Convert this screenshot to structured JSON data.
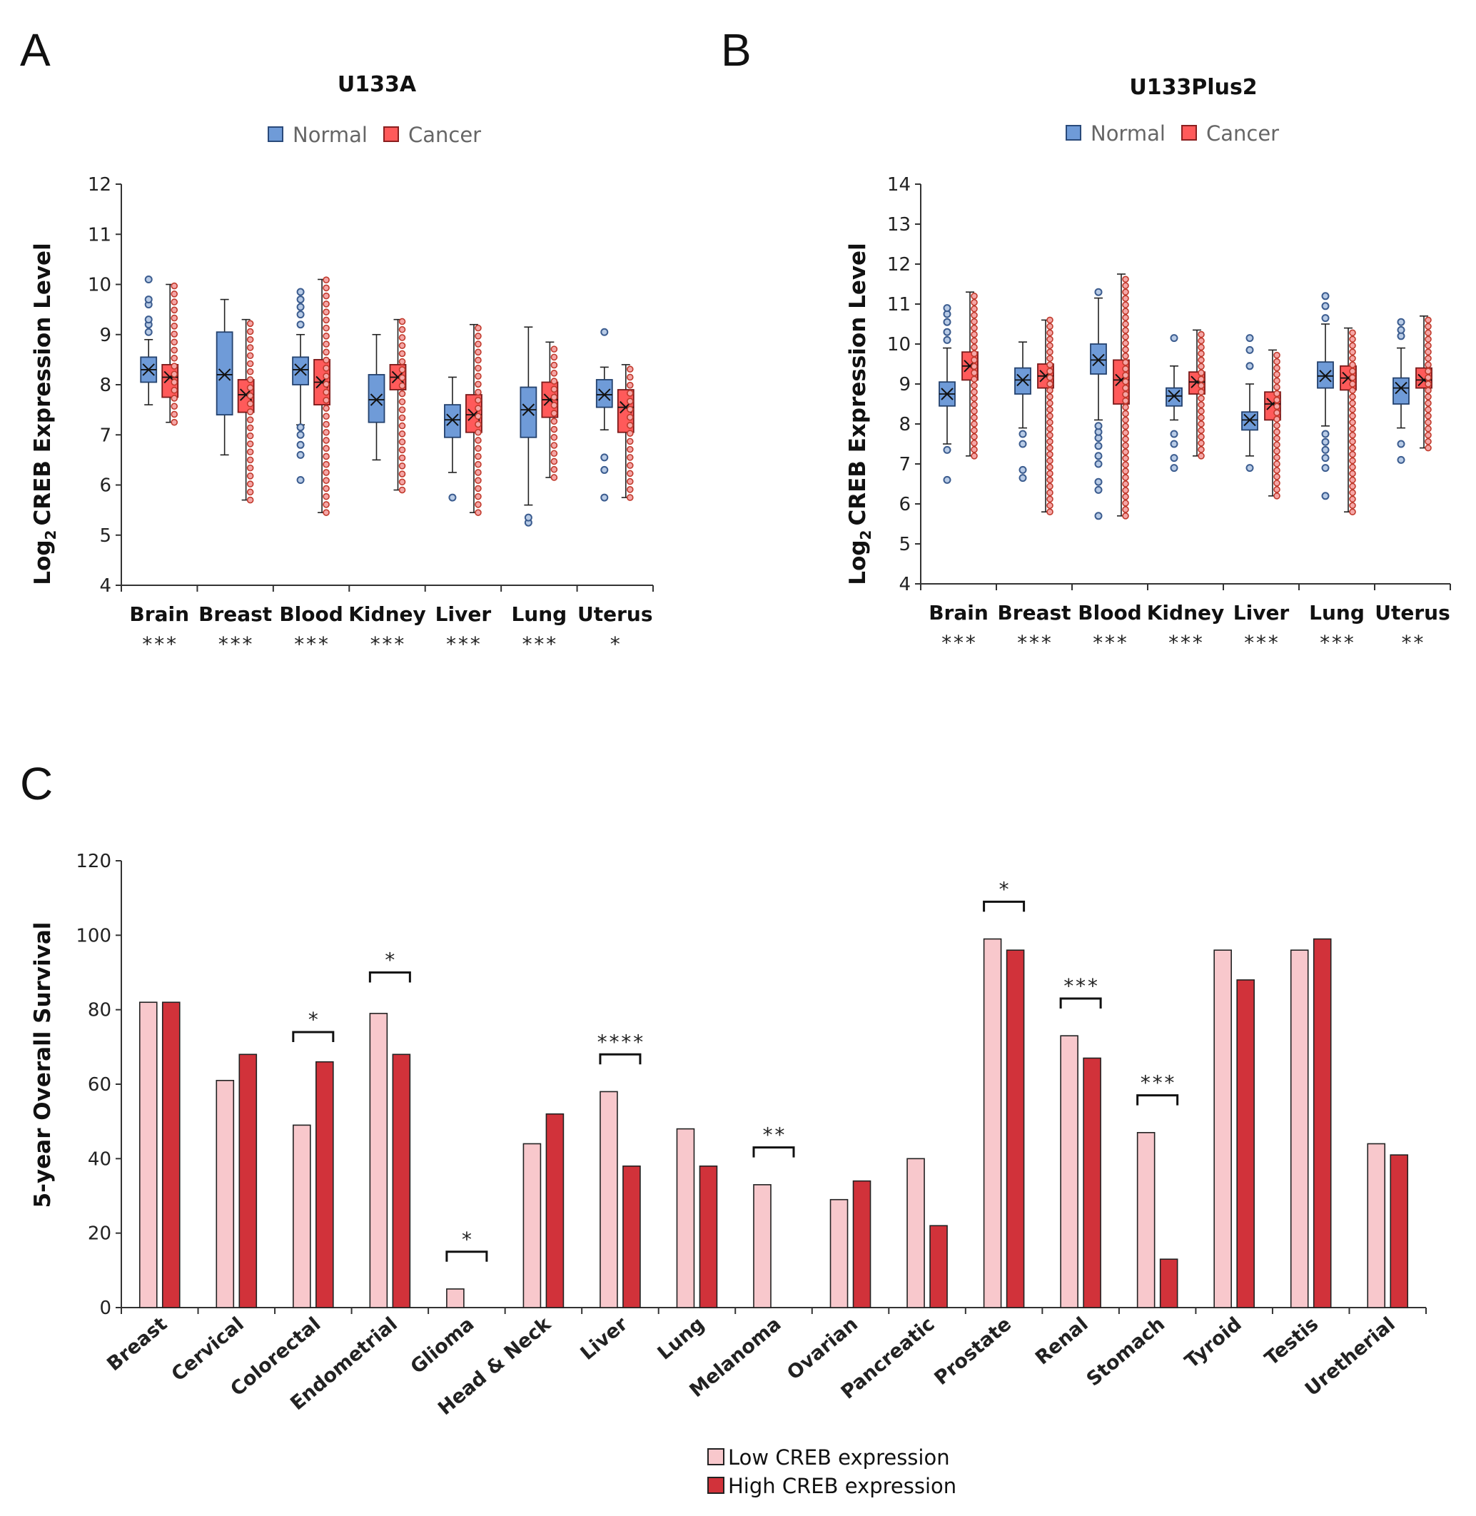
{
  "figure": {
    "panels": [
      "A",
      "B",
      "C"
    ],
    "colors": {
      "normal": "#6f9bd8",
      "cancer": "#ff5a5a",
      "normal_point": "#3b5c8f",
      "cancer_point": "#c0392b",
      "low_creb": "#f8c8cc",
      "high_creb": "#d1323a",
      "axis": "#333333"
    }
  },
  "chart_data": [
    {
      "id": "A",
      "type": "box",
      "title": "U133A",
      "legend": [
        "Normal",
        "Cancer"
      ],
      "ylabel": "CREB Expression Level",
      "ylabel_prefix": "Log",
      "ylabel_subscript": "2",
      "ylim": [
        4,
        12
      ],
      "yticks": [
        4,
        5,
        6,
        7,
        8,
        9,
        10,
        11,
        12
      ],
      "categories": [
        "Brain",
        "Breast",
        "Blood",
        "Kidney",
        "Liver",
        "Lung",
        "Uterus"
      ],
      "significance": [
        "***",
        "***",
        "***",
        "***",
        "***",
        "***",
        "*"
      ],
      "series": [
        {
          "name": "Normal",
          "boxes": [
            {
              "whislo": 7.6,
              "q1": 8.05,
              "med": 8.3,
              "q3": 8.55,
              "whishi": 8.9,
              "mean": 8.3,
              "outliers": [
                9.05,
                9.2,
                9.3,
                9.6,
                9.7,
                10.1
              ]
            },
            {
              "whislo": 6.6,
              "q1": 7.4,
              "med": 8.2,
              "q3": 9.05,
              "whishi": 9.7,
              "mean": 8.2,
              "outliers": []
            },
            {
              "whislo": 7.2,
              "q1": 8.0,
              "med": 8.3,
              "q3": 8.55,
              "whishi": 9.0,
              "mean": 8.3,
              "outliers": [
                6.1,
                6.6,
                6.8,
                7.0,
                7.15,
                9.2,
                9.4,
                9.55,
                9.7,
                9.85
              ]
            },
            {
              "whislo": 6.5,
              "q1": 7.25,
              "med": 7.7,
              "q3": 8.2,
              "whishi": 9.0,
              "mean": 7.7,
              "outliers": []
            },
            {
              "whislo": 6.25,
              "q1": 6.95,
              "med": 7.3,
              "q3": 7.6,
              "whishi": 8.15,
              "mean": 7.3,
              "outliers": [
                5.75
              ]
            },
            {
              "whislo": 5.6,
              "q1": 6.95,
              "med": 7.5,
              "q3": 7.95,
              "whishi": 9.15,
              "mean": 7.5,
              "outliers": [
                5.25,
                5.35
              ]
            },
            {
              "whislo": 7.1,
              "q1": 7.55,
              "med": 7.8,
              "q3": 8.1,
              "whishi": 8.35,
              "mean": 7.8,
              "outliers": [
                5.75,
                6.3,
                6.55,
                9.05
              ]
            }
          ]
        },
        {
          "name": "Cancer",
          "boxes": [
            {
              "whislo": 7.25,
              "q1": 7.75,
              "med": 8.15,
              "q3": 8.4,
              "whishi": 10.0,
              "mean": 8.15,
              "outliers": []
            },
            {
              "whislo": 5.7,
              "q1": 7.45,
              "med": 7.8,
              "q3": 8.1,
              "whishi": 9.3,
              "mean": 7.8,
              "outliers": []
            },
            {
              "whislo": 5.45,
              "q1": 7.6,
              "med": 8.05,
              "q3": 8.5,
              "whishi": 10.1,
              "mean": 8.05,
              "outliers": []
            },
            {
              "whislo": 5.9,
              "q1": 7.9,
              "med": 8.15,
              "q3": 8.4,
              "whishi": 9.3,
              "mean": 8.15,
              "outliers": []
            },
            {
              "whislo": 5.45,
              "q1": 7.05,
              "med": 7.4,
              "q3": 7.8,
              "whishi": 9.2,
              "mean": 7.4,
              "outliers": []
            },
            {
              "whislo": 6.15,
              "q1": 7.35,
              "med": 7.7,
              "q3": 8.05,
              "whishi": 8.85,
              "mean": 7.7,
              "outliers": []
            },
            {
              "whislo": 5.75,
              "q1": 7.05,
              "med": 7.55,
              "q3": 7.9,
              "whishi": 8.4,
              "mean": 7.55,
              "outliers": []
            }
          ]
        }
      ]
    },
    {
      "id": "B",
      "type": "box",
      "title": "U133Plus2",
      "legend": [
        "Normal",
        "Cancer"
      ],
      "ylabel": "CREB Expression Level",
      "ylabel_prefix": "Log",
      "ylabel_subscript": "2",
      "ylim": [
        4,
        14
      ],
      "yticks": [
        4,
        5,
        6,
        7,
        8,
        9,
        10,
        11,
        12,
        13,
        14
      ],
      "categories": [
        "Brain",
        "Breast",
        "Blood",
        "Kidney",
        "Liver",
        "Lung",
        "Uterus"
      ],
      "significance": [
        "***",
        "***",
        "***",
        "***",
        "***",
        "***",
        "**"
      ],
      "series": [
        {
          "name": "Normal",
          "boxes": [
            {
              "whislo": 7.5,
              "q1": 8.45,
              "med": 8.75,
              "q3": 9.05,
              "whishi": 9.9,
              "mean": 8.75,
              "outliers": [
                6.6,
                7.35,
                10.1,
                10.3,
                10.55,
                10.75,
                10.9
              ]
            },
            {
              "whislo": 7.9,
              "q1": 8.75,
              "med": 9.1,
              "q3": 9.4,
              "whishi": 10.05,
              "mean": 9.1,
              "outliers": [
                6.65,
                6.85,
                7.5,
                7.75
              ]
            },
            {
              "whislo": 8.1,
              "q1": 9.25,
              "med": 9.6,
              "q3": 10.0,
              "whishi": 11.15,
              "mean": 9.6,
              "outliers": [
                5.7,
                6.35,
                6.55,
                7.0,
                7.2,
                7.45,
                7.65,
                7.8,
                7.95,
                11.3
              ]
            },
            {
              "whislo": 8.1,
              "q1": 8.45,
              "med": 8.7,
              "q3": 8.9,
              "whishi": 9.45,
              "mean": 8.7,
              "outliers": [
                6.9,
                7.15,
                7.5,
                7.75,
                10.15
              ]
            },
            {
              "whislo": 7.2,
              "q1": 7.85,
              "med": 8.1,
              "q3": 8.3,
              "whishi": 9.0,
              "mean": 8.1,
              "outliers": [
                6.9,
                9.45,
                9.85,
                10.15
              ]
            },
            {
              "whislo": 7.95,
              "q1": 8.9,
              "med": 9.2,
              "q3": 9.55,
              "whishi": 10.5,
              "mean": 9.2,
              "outliers": [
                6.2,
                6.9,
                7.15,
                7.35,
                7.55,
                7.75,
                10.65,
                10.95,
                11.2
              ]
            },
            {
              "whislo": 7.9,
              "q1": 8.5,
              "med": 8.9,
              "q3": 9.15,
              "whishi": 9.9,
              "mean": 8.9,
              "outliers": [
                7.1,
                7.5,
                10.2,
                10.35,
                10.55
              ]
            }
          ]
        },
        {
          "name": "Cancer",
          "boxes": [
            {
              "whislo": 7.2,
              "q1": 9.1,
              "med": 9.45,
              "q3": 9.8,
              "whishi": 11.3,
              "mean": 9.45,
              "outliers": []
            },
            {
              "whislo": 5.8,
              "q1": 8.9,
              "med": 9.2,
              "q3": 9.5,
              "whishi": 10.6,
              "mean": 9.2,
              "outliers": []
            },
            {
              "whislo": 5.7,
              "q1": 8.5,
              "med": 9.1,
              "q3": 9.6,
              "whishi": 11.75,
              "mean": 9.1,
              "outliers": []
            },
            {
              "whislo": 7.2,
              "q1": 8.75,
              "med": 9.05,
              "q3": 9.3,
              "whishi": 10.35,
              "mean": 9.05,
              "outliers": []
            },
            {
              "whislo": 6.2,
              "q1": 8.1,
              "med": 8.5,
              "q3": 8.8,
              "whishi": 9.85,
              "mean": 8.5,
              "outliers": []
            },
            {
              "whislo": 5.8,
              "q1": 8.85,
              "med": 9.15,
              "q3": 9.45,
              "whishi": 10.4,
              "mean": 9.15,
              "outliers": []
            },
            {
              "whislo": 7.4,
              "q1": 8.9,
              "med": 9.1,
              "q3": 9.4,
              "whishi": 10.7,
              "mean": 9.1,
              "outliers": []
            }
          ]
        }
      ]
    },
    {
      "id": "C",
      "type": "bar",
      "title": "",
      "ylabel": "5-year Overall Survival",
      "xlabel": "",
      "ylim": [
        0,
        120
      ],
      "yticks": [
        0,
        20,
        40,
        60,
        80,
        100,
        120
      ],
      "categories": [
        "Breast",
        "Cervical",
        "Colorectal",
        "Endometrial",
        "Glioma",
        "Head & Neck",
        "Liver",
        "Lung",
        "Melanoma",
        "Ovarian",
        "Pancreatic",
        "Prostate",
        "Renal",
        "Stomach",
        "Tyroid",
        "Testis",
        "Uretherial"
      ],
      "series": [
        {
          "name": "Low CREB expression",
          "values": [
            82,
            61,
            49,
            79,
            5,
            44,
            58,
            48,
            33,
            29,
            40,
            99,
            73,
            47,
            96,
            96,
            44
          ]
        },
        {
          "name": "High CREB expression",
          "values": [
            82,
            68,
            66,
            68,
            0,
            52,
            38,
            38,
            0,
            34,
            22,
            96,
            67,
            13,
            88,
            99,
            41
          ]
        }
      ],
      "legend": [
        "Low CREB expression",
        "High CREB expression"
      ],
      "significance": [
        {
          "category": "Colorectal",
          "label": "*",
          "y": 74
        },
        {
          "category": "Endometrial",
          "label": "*",
          "y": 90
        },
        {
          "category": "Glioma",
          "label": "*",
          "y": 15
        },
        {
          "category": "Liver",
          "label": "****",
          "y": 68
        },
        {
          "category": "Melanoma",
          "label": "**",
          "y": 43
        },
        {
          "category": "Prostate",
          "label": "*",
          "y": 109
        },
        {
          "category": "Renal",
          "label": "***",
          "y": 83
        },
        {
          "category": "Stomach",
          "label": "***",
          "y": 57
        }
      ]
    }
  ]
}
